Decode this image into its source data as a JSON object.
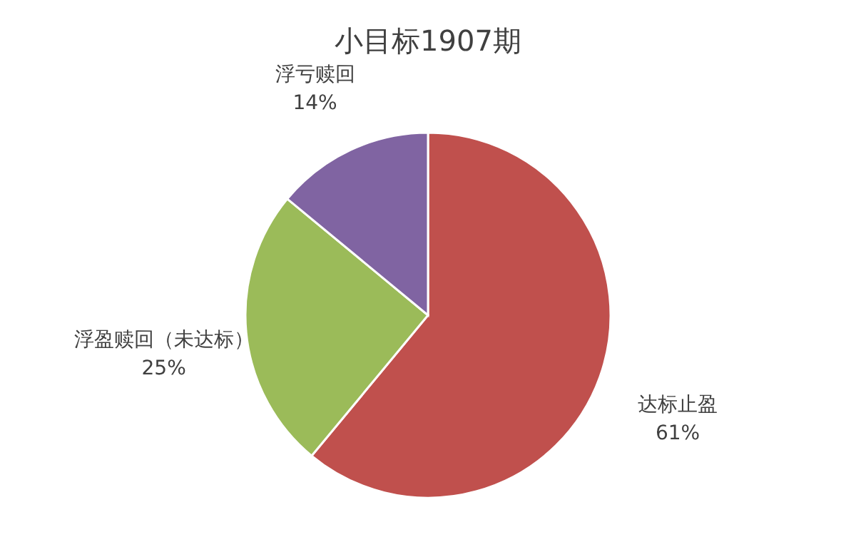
{
  "chart_data": {
    "type": "pie",
    "title": "小目标1907期",
    "categories": [
      "达标止盈",
      "浮盈赎回（未达标）",
      "浮亏赎回"
    ],
    "values": [
      61,
      25,
      14
    ],
    "colors": [
      "#c0504d",
      "#9bbb59",
      "#8064a2"
    ],
    "value_labels": [
      "61%",
      "25%",
      "14%"
    ],
    "legend": false
  }
}
